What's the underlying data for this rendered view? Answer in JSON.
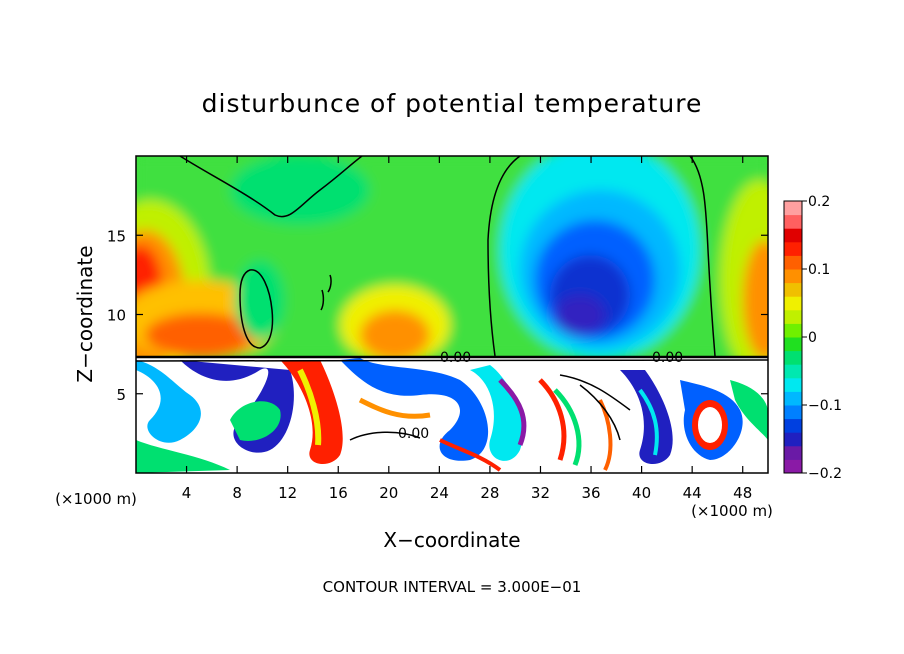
{
  "chart_data": {
    "type": "heatmap",
    "title": "disturbunce of potential temperature",
    "xlabel": "X−coordinate",
    "ylabel": "Z−coordinate",
    "x_unit_left": "(×1000 m)",
    "x_unit_right": "(×1000 m)",
    "footer": "CONTOUR INTERVAL = 3.000E−01",
    "xlim": [
      0,
      50
    ],
    "ylim": [
      0,
      20
    ],
    "x_ticks": [
      "4",
      "8",
      "12",
      "16",
      "20",
      "24",
      "28",
      "32",
      "36",
      "40",
      "44",
      "48"
    ],
    "x_tick_values": [
      4,
      8,
      12,
      16,
      20,
      24,
      28,
      32,
      36,
      40,
      44,
      48
    ],
    "y_ticks": [
      "5",
      "10",
      "15"
    ],
    "y_tick_values": [
      5,
      10,
      15
    ],
    "colorbar": {
      "ticks": [
        "0.2",
        "0.1",
        "0",
        "−0.1",
        "−0.2"
      ],
      "tick_values": [
        0.2,
        0.1,
        0,
        -0.1,
        -0.2
      ],
      "range": [
        -0.2,
        0.2
      ],
      "colors": [
        "#8a1aa6",
        "#6a1aa6",
        "#2020c0",
        "#0040e0",
        "#0080ff",
        "#00b8ff",
        "#00e8f0",
        "#00e8b0",
        "#00e070",
        "#20e020",
        "#70f000",
        "#c0f000",
        "#f0f000",
        "#f0c000",
        "#ff9000",
        "#ff6000",
        "#ff2000",
        "#e00000",
        "#ff6060",
        "#ffa0a0"
      ]
    },
    "contour_labels": [
      "0.00",
      "0.00",
      "0.00"
    ],
    "contour_interval": 0.3
  }
}
